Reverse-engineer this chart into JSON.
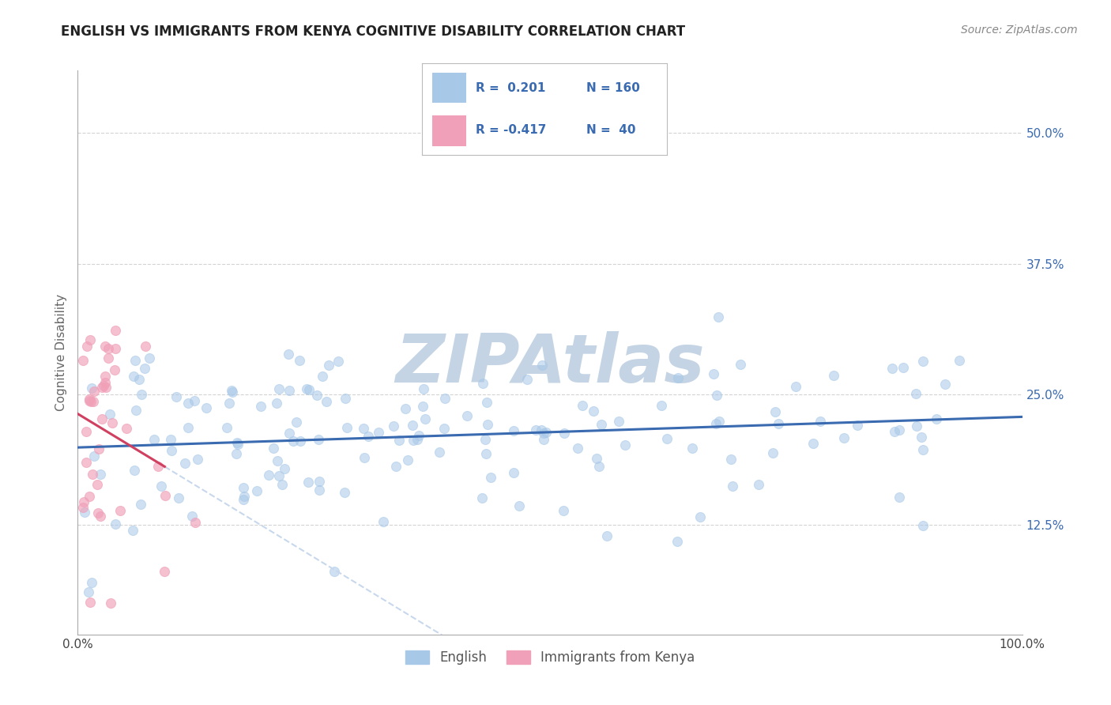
{
  "title": "ENGLISH VS IMMIGRANTS FROM KENYA COGNITIVE DISABILITY CORRELATION CHART",
  "source": "Source: ZipAtlas.com",
  "ylabel": "Cognitive Disability",
  "xlim": [
    0.0,
    1.0
  ],
  "ylim": [
    0.02,
    0.56
  ],
  "ytick_positions": [
    0.125,
    0.25,
    0.375,
    0.5
  ],
  "ytick_labels": [
    "12.5%",
    "25.0%",
    "37.5%",
    "50.0%"
  ],
  "english_R": 0.201,
  "english_N": 160,
  "kenya_R": -0.417,
  "kenya_N": 40,
  "english_color": "#a8c8e8",
  "kenya_color": "#f0a0b8",
  "english_line_color": "#3a6ab0",
  "kenya_line_color": "#d04060",
  "dashed_extend_color": "#c8d8ec",
  "watermark": "ZIPAtlas",
  "watermark_color": "#c4d4e4",
  "title_fontsize": 12,
  "label_text_color": "#3a6ab0",
  "background_color": "#ffffff",
  "grid_color": "#c8c8c8",
  "seed": 1234
}
